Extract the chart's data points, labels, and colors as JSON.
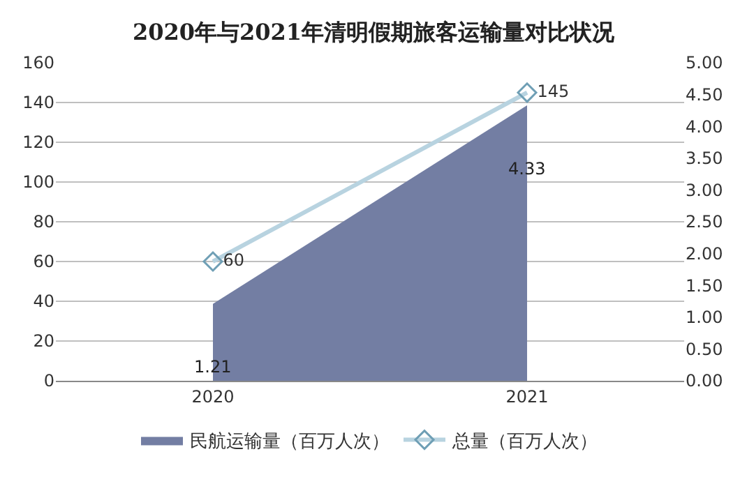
{
  "chart_data": {
    "type": "area",
    "title": "2020年与2021年清明假期旅客运输量对比状况",
    "categories": [
      "2020",
      "2021"
    ],
    "series": [
      {
        "name": "民航运输量（百万人次）",
        "axis": "y2",
        "color": "#737ea3",
        "values": [
          1.21,
          4.33
        ]
      },
      {
        "name": "总量（百万人次）",
        "type": "line",
        "axis": "y",
        "color": "#b8d3e0",
        "marker": "diamond",
        "values": [
          60,
          145
        ]
      }
    ],
    "ylim": [
      0,
      160
    ],
    "yticks": [
      0,
      20,
      40,
      60,
      80,
      100,
      120,
      140,
      160
    ],
    "y2lim": [
      0,
      5
    ],
    "y2ticks": [
      {
        "value": 0,
        "label": "0.00"
      },
      {
        "value": 0.5,
        "label": "0.50"
      },
      {
        "value": 1,
        "label": "1.00"
      },
      {
        "value": 1.5,
        "label": "1.50"
      },
      {
        "value": 2,
        "label": "2.00"
      },
      {
        "value": 2.5,
        "label": "2.50"
      },
      {
        "value": 3,
        "label": "3.00"
      },
      {
        "value": 3.5,
        "label": "3.50"
      },
      {
        "value": 4,
        "label": "4.00"
      },
      {
        "value": 4.5,
        "label": "4.50"
      },
      {
        "value": 5,
        "label": "5.00"
      }
    ],
    "grid": "y",
    "legend": "bottom",
    "data_labels": true
  }
}
